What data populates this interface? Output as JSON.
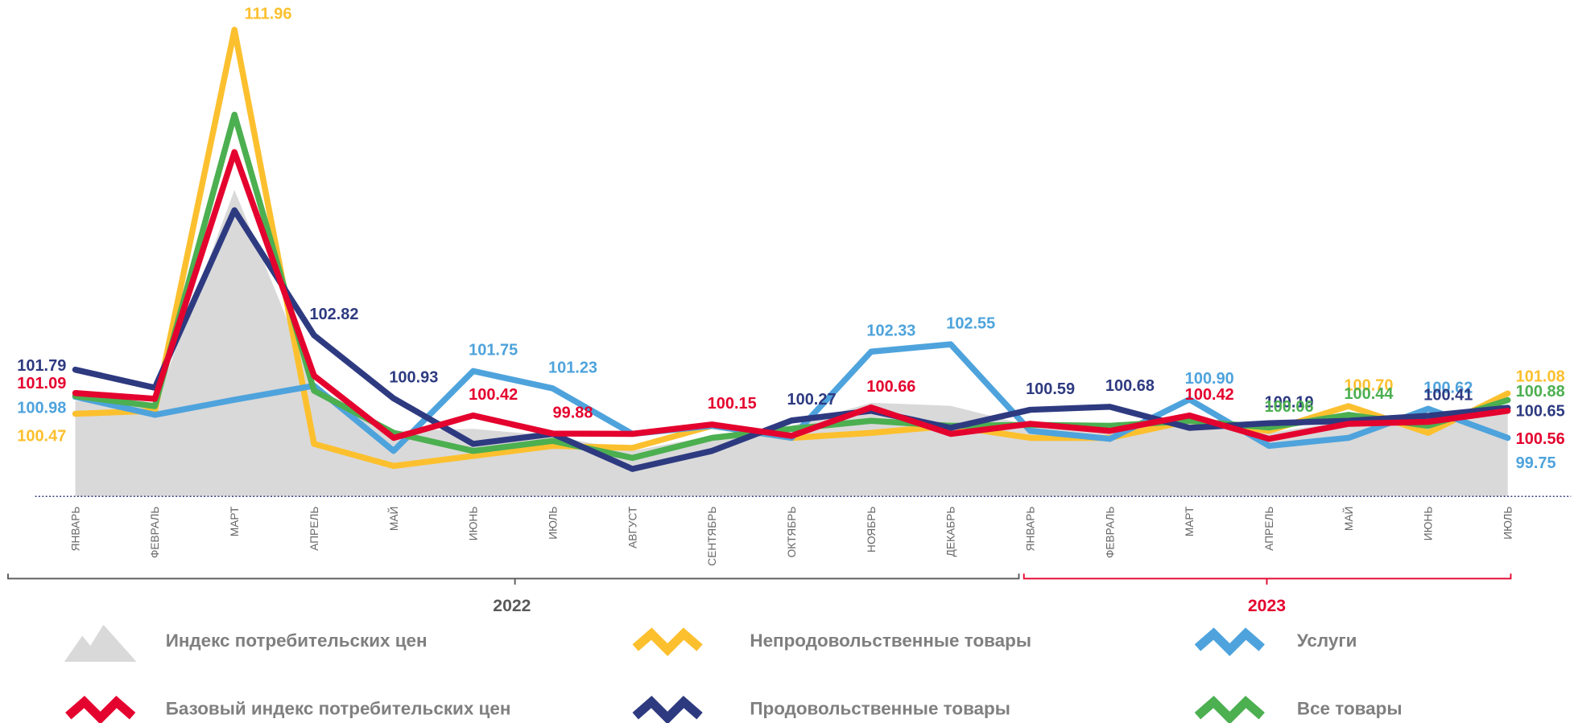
{
  "chart_data": {
    "type": "line",
    "categories": [
      "ЯНВАРЬ",
      "ФЕВРАЛЬ",
      "МАРТ",
      "АПРЕЛЬ",
      "МАЙ",
      "ИЮНЬ",
      "ИЮЛЬ",
      "АВГУСТ",
      "СЕНТЯБРЬ",
      "ОКТЯБРЬ",
      "НОЯБРЬ",
      "ДЕКАБРЬ",
      "ЯНВАРЬ",
      "ФЕВРАЛЬ",
      "МАРТ",
      "АПРЕЛЬ",
      "МАЙ",
      "ИЮНЬ",
      "ИЮЛЬ"
    ],
    "year_labels": [
      "2022",
      "2023"
    ],
    "ylim": [
      98,
      113
    ],
    "series": [
      {
        "name": "Индекс потребительских цен",
        "color": "#d9d9d9",
        "style": "area",
        "values": [
          100.86,
          100.71,
          107.17,
          101.31,
          99.96,
          100.02,
          99.81,
          99.36,
          99.81,
          100.11,
          100.8,
          100.71,
          100.11,
          99.96,
          100.26,
          99.9,
          100.26,
          100.26,
          100.56
        ]
      },
      {
        "name": "Непродовольственные товары",
        "color": "#fcc02f",
        "style": "line",
        "values": [
          100.47,
          100.56,
          111.96,
          99.57,
          98.91,
          99.21,
          99.51,
          99.45,
          100.11,
          99.75,
          99.9,
          100.11,
          99.75,
          99.75,
          100.26,
          99.96,
          100.7,
          99.9,
          101.08
        ],
        "value_labels": [
          "100.47",
          null,
          "111.96",
          null,
          null,
          null,
          null,
          null,
          null,
          null,
          null,
          null,
          null,
          null,
          null,
          null,
          "100.70",
          null,
          "101.08"
        ]
      },
      {
        "name": "Услуги",
        "color": "#4ea3dc",
        "style": "line",
        "values": [
          100.98,
          100.44,
          100.89,
          101.31,
          99.36,
          101.75,
          101.23,
          99.87,
          100.11,
          99.75,
          102.33,
          102.55,
          99.96,
          99.72,
          100.9,
          99.51,
          99.75,
          100.62,
          99.75
        ],
        "value_labels": [
          "100.98",
          null,
          null,
          null,
          null,
          "101.75",
          "101.23",
          null,
          null,
          null,
          "102.33",
          "102.55",
          null,
          null,
          "100.90",
          null,
          null,
          "100.62",
          "99.75"
        ]
      },
      {
        "name": "Базовый индекс потребительских цен",
        "color": "#e4032e",
        "style": "line",
        "values": [
          101.09,
          100.92,
          108.3,
          101.61,
          99.75,
          100.42,
          99.88,
          99.87,
          100.15,
          99.81,
          100.66,
          99.87,
          100.17,
          99.96,
          100.42,
          99.72,
          100.17,
          100.23,
          100.56
        ],
        "value_labels": [
          "101.09",
          null,
          null,
          null,
          null,
          "100.42",
          "99.88",
          null,
          "100.15",
          null,
          "100.66",
          null,
          null,
          null,
          "100.42",
          null,
          null,
          null,
          "100.56"
        ]
      },
      {
        "name": "Продовольственные товары",
        "color": "#2e3a80",
        "style": "line",
        "values": [
          101.79,
          101.25,
          106.56,
          102.82,
          100.93,
          99.57,
          99.87,
          98.82,
          99.36,
          100.27,
          100.56,
          100.05,
          100.59,
          100.68,
          100.05,
          100.19,
          100.26,
          100.41,
          100.65
        ],
        "value_labels": [
          "101.79",
          null,
          null,
          "102.82",
          "100.93",
          null,
          null,
          null,
          null,
          "100.27",
          null,
          null,
          "100.59",
          "100.68",
          null,
          "100.19",
          null,
          "100.41",
          "100.65"
        ]
      },
      {
        "name": "Все товары",
        "color": "#4caf50",
        "style": "line",
        "values": [
          101.0,
          100.7,
          109.42,
          101.16,
          99.9,
          99.36,
          99.66,
          99.15,
          99.75,
          100.02,
          100.26,
          100.11,
          100.14,
          100.11,
          100.26,
          100.06,
          100.44,
          100.11,
          100.88
        ],
        "value_labels": [
          null,
          null,
          null,
          null,
          null,
          null,
          null,
          null,
          null,
          null,
          null,
          null,
          null,
          null,
          null,
          "100.06",
          "100.44",
          null,
          "100.88"
        ]
      }
    ]
  }
}
